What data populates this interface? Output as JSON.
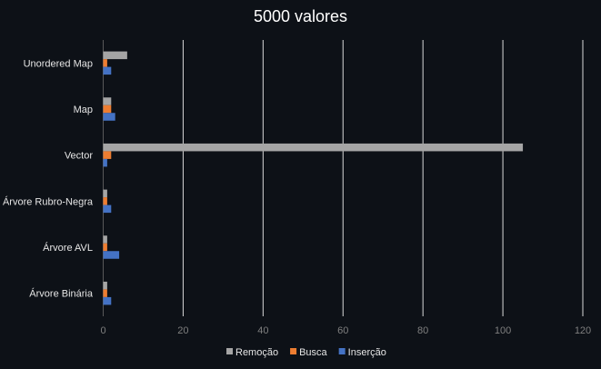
{
  "chart_data": {
    "type": "bar",
    "orientation": "horizontal",
    "title": "5000 valores",
    "categories": [
      "Unordered Map",
      "Map",
      "Vector",
      "Árvore Rubro-Negra",
      "Árvore AVL",
      "Árvore Binária"
    ],
    "series": [
      {
        "name": "Remoção",
        "color": "#a5a5a5",
        "values": [
          6,
          2,
          105,
          1,
          1,
          1
        ]
      },
      {
        "name": "Busca",
        "color": "#ed7d31",
        "values": [
          1,
          2,
          2,
          1,
          1,
          1
        ]
      },
      {
        "name": "Inserção",
        "color": "#4472c4",
        "values": [
          2,
          3,
          1,
          2,
          4,
          2
        ]
      }
    ],
    "xticks": [
      "0",
      "20",
      "40",
      "60",
      "80",
      "100",
      "120"
    ],
    "xlim": [
      0,
      120
    ],
    "xlabel": "",
    "ylabel": "",
    "grid": true,
    "legend_position": "bottom",
    "background": "#0d1117",
    "gridline_color": "#d9d9d9"
  }
}
